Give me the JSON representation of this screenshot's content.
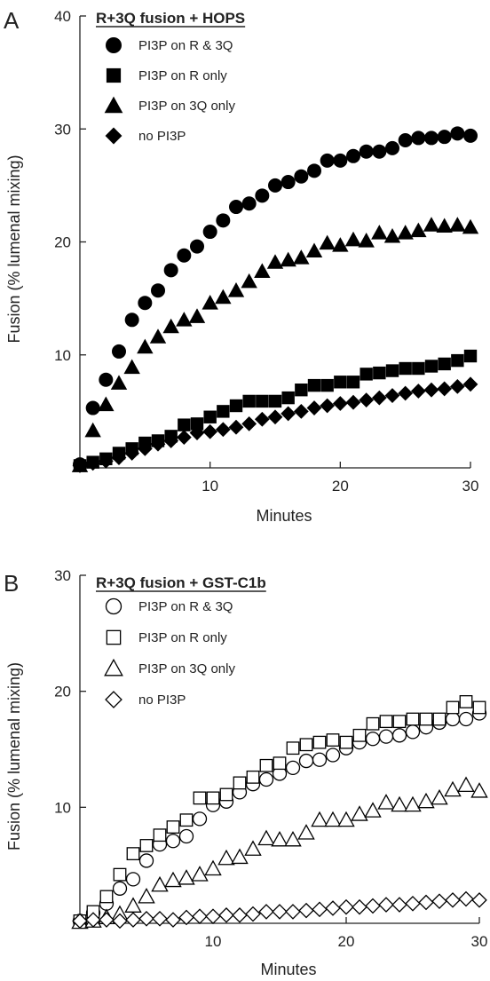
{
  "panels": [
    {
      "label": "A",
      "chart_data": {
        "type": "scatter",
        "title": "R+3Q fusion + HOPS",
        "xlabel": "Minutes",
        "ylabel": "Fusion (% lumenal mixing)",
        "xlim": [
          0,
          30
        ],
        "ylim": [
          0,
          40
        ],
        "xticks": [
          10,
          20,
          30
        ],
        "yticks": [
          10,
          20,
          30,
          40
        ],
        "grid": false,
        "legend_position": "top-left",
        "x": [
          0,
          1,
          2,
          3,
          4,
          5,
          6,
          7,
          8,
          9,
          10,
          11,
          12,
          13,
          14,
          15,
          16,
          17,
          18,
          19,
          20,
          21,
          22,
          23,
          24,
          25,
          26,
          27,
          28,
          29,
          30
        ],
        "series": [
          {
            "name": "PI3P on R & 3Q",
            "marker": "circle",
            "filled": true,
            "values": [
              0.3,
              5.3,
              7.8,
              10.3,
              13.1,
              14.6,
              15.7,
              17.5,
              18.8,
              19.6,
              20.9,
              21.9,
              23.1,
              23.4,
              24.1,
              25.0,
              25.3,
              25.8,
              26.3,
              27.2,
              27.2,
              27.6,
              28.0,
              28.0,
              28.3,
              29.0,
              29.2,
              29.2,
              29.3,
              29.6,
              29.4
            ]
          },
          {
            "name": "PI3P on R only",
            "marker": "square",
            "filled": true,
            "values": [
              0.2,
              0.5,
              0.8,
              1.3,
              1.7,
              2.2,
              2.4,
              2.8,
              3.8,
              3.9,
              4.5,
              5.0,
              5.5,
              5.9,
              5.9,
              5.9,
              6.2,
              6.9,
              7.3,
              7.3,
              7.6,
              7.6,
              8.3,
              8.4,
              8.6,
              8.8,
              8.8,
              9.0,
              9.2,
              9.5,
              9.9
            ]
          },
          {
            "name": "PI3P on 3Q only",
            "marker": "triangle",
            "filled": true,
            "values": [
              0.2,
              3.3,
              5.6,
              7.5,
              8.9,
              10.7,
              11.6,
              12.5,
              13.1,
              13.4,
              14.6,
              15.1,
              15.7,
              16.5,
              17.4,
              18.2,
              18.4,
              18.6,
              19.2,
              19.9,
              19.7,
              20.2,
              20.1,
              20.8,
              20.5,
              20.8,
              21.0,
              21.5,
              21.4,
              21.5,
              21.3
            ]
          },
          {
            "name": "no PI3P",
            "marker": "diamond",
            "filled": true,
            "values": [
              0.2,
              0.4,
              0.6,
              0.9,
              1.3,
              1.7,
              2.1,
              2.4,
              2.7,
              3.1,
              3.2,
              3.4,
              3.6,
              3.9,
              4.3,
              4.5,
              4.8,
              5.0,
              5.3,
              5.5,
              5.7,
              5.8,
              6.0,
              6.2,
              6.4,
              6.6,
              6.8,
              6.9,
              7.0,
              7.2,
              7.4
            ]
          }
        ]
      }
    },
    {
      "label": "B",
      "chart_data": {
        "type": "scatter",
        "title": "R+3Q fusion + GST-C1b",
        "xlabel": "Minutes",
        "ylabel": "Fusion (% lumenal mixing)",
        "xlim": [
          0,
          30
        ],
        "ylim": [
          0,
          30
        ],
        "xticks": [
          10,
          20,
          30
        ],
        "yticks": [
          10,
          20,
          30
        ],
        "grid": false,
        "legend_position": "top-left",
        "x": [
          0,
          1,
          2,
          3,
          4,
          5,
          6,
          7,
          8,
          9,
          10,
          11,
          12,
          13,
          14,
          15,
          16,
          17,
          18,
          19,
          20,
          21,
          22,
          23,
          24,
          25,
          26,
          27,
          28,
          29,
          30
        ],
        "series": [
          {
            "name": "PI3P on R & 3Q",
            "marker": "circle",
            "filled": false,
            "values": [
              0.2,
              0.9,
              1.7,
              3.0,
              3.8,
              5.4,
              6.8,
              7.1,
              7.5,
              9.0,
              10.2,
              10.5,
              11.3,
              12.0,
              12.4,
              12.9,
              13.4,
              14.0,
              14.1,
              14.5,
              15.1,
              15.6,
              15.9,
              16.1,
              16.2,
              16.5,
              16.9,
              17.3,
              17.6,
              17.6,
              18.1
            ]
          },
          {
            "name": "PI3P on R only",
            "marker": "square",
            "filled": false,
            "values": [
              0.2,
              1.0,
              2.3,
              4.2,
              6.0,
              6.7,
              7.6,
              8.3,
              8.9,
              10.8,
              10.8,
              11.1,
              12.1,
              12.6,
              13.6,
              13.8,
              15.1,
              15.4,
              15.6,
              15.8,
              15.6,
              16.2,
              17.2,
              17.4,
              17.4,
              17.6,
              17.6,
              17.6,
              18.6,
              19.1,
              18.6
            ]
          },
          {
            "name": "PI3P on 3Q only",
            "marker": "triangle",
            "filled": false,
            "values": [
              0.1,
              0.2,
              0.5,
              0.8,
              1.5,
              2.3,
              3.3,
              3.7,
              3.9,
              4.2,
              4.7,
              5.6,
              5.7,
              6.4,
              7.3,
              7.2,
              7.2,
              7.8,
              8.9,
              8.9,
              8.9,
              9.4,
              9.7,
              10.4,
              10.2,
              10.2,
              10.5,
              10.8,
              11.5,
              11.9,
              11.4
            ]
          },
          {
            "name": "no PI3P",
            "marker": "diamond",
            "filled": false,
            "values": [
              0.2,
              0.3,
              0.3,
              0.2,
              0.3,
              0.4,
              0.4,
              0.3,
              0.5,
              0.6,
              0.6,
              0.7,
              0.7,
              0.8,
              1.0,
              1.0,
              1.0,
              1.1,
              1.2,
              1.3,
              1.4,
              1.4,
              1.5,
              1.6,
              1.6,
              1.7,
              1.8,
              1.9,
              2.0,
              2.1,
              2.0
            ]
          }
        ]
      }
    }
  ]
}
